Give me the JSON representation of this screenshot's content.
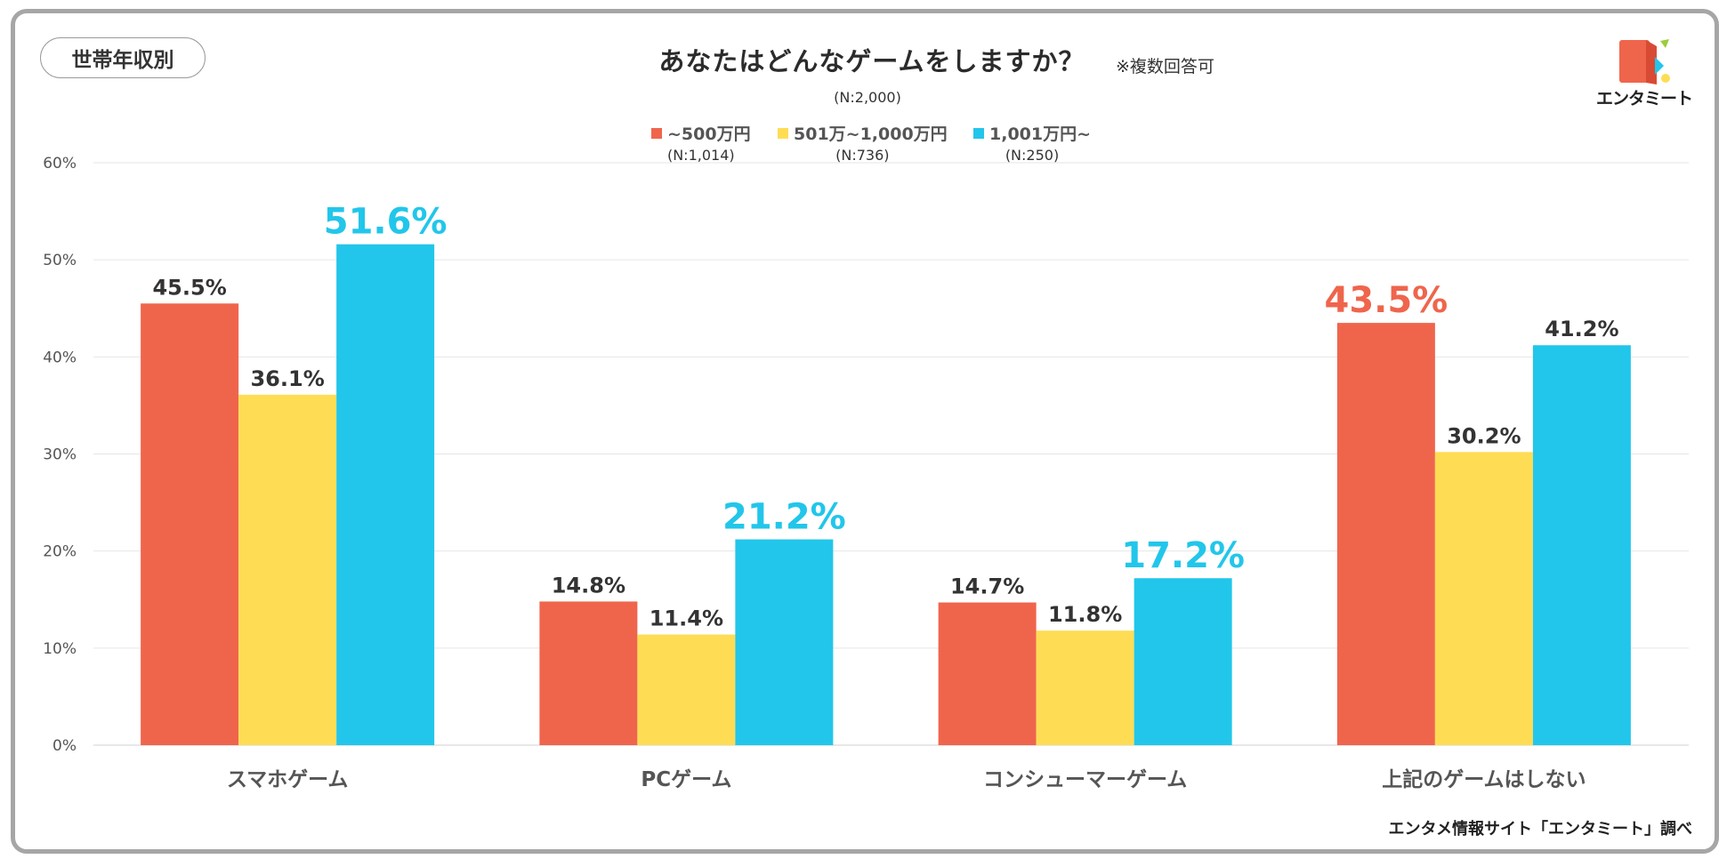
{
  "header": {
    "badge": "世帯年収別",
    "title": "あなたはどんなゲームをしますか？",
    "note": "※複数回答可",
    "sample": "(N:2,000)"
  },
  "logo": {
    "text": "エンタミート"
  },
  "footer": {
    "source": "エンタメ情報サイト「エンタミート」調べ"
  },
  "colors": {
    "red": "#EF654C",
    "yellow": "#FEDD55",
    "cyan": "#22C6EA",
    "label_dark": "#333333",
    "gridline": "#e6e6e6"
  },
  "chart_data": {
    "type": "bar",
    "title": "あなたはどんなゲームをしますか？",
    "categories": [
      "スマホゲーム",
      "PCゲーム",
      "コンシューマーゲーム",
      "上記のゲームはしない"
    ],
    "series": [
      {
        "name": "~500万円",
        "n": "(N:1,014)",
        "color": "#EF654C",
        "values": [
          45.5,
          14.8,
          14.7,
          43.5
        ]
      },
      {
        "name": "501万~1,000万円",
        "n": "(N:736)",
        "color": "#FEDD55",
        "values": [
          36.1,
          11.4,
          11.8,
          30.2
        ]
      },
      {
        "name": "1,001万円~",
        "n": "(N:250)",
        "color": "#22C6EA",
        "values": [
          51.6,
          21.2,
          17.2,
          41.2
        ]
      }
    ],
    "highlights": [
      {
        "category": 0,
        "series": 2
      },
      {
        "category": 1,
        "series": 2
      },
      {
        "category": 2,
        "series": 2
      },
      {
        "category": 3,
        "series": 0
      }
    ],
    "y_ticks": [
      "0%",
      "10%",
      "20%",
      "30%",
      "40%",
      "50%",
      "60%"
    ],
    "ylim": [
      0,
      60
    ],
    "unit": "%",
    "grid": true,
    "legend": "top-center"
  }
}
